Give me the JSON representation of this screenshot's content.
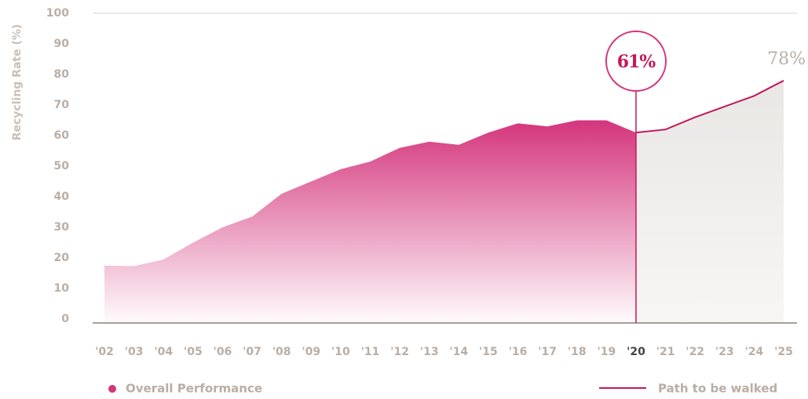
{
  "chart_data": {
    "type": "area",
    "y_axis_label": "Recycling Rate (%)",
    "categories": [
      "'02",
      "'03",
      "'04",
      "'05",
      "'06",
      "'07",
      "'08",
      "'09",
      "'10",
      "'11",
      "'12",
      "'13",
      "'14",
      "'15",
      "'16",
      "'17",
      "'18",
      "'19",
      "'20",
      "'21",
      "'22",
      "'23",
      "'24",
      "'25"
    ],
    "series": [
      {
        "name": "Overall Performance",
        "color": "#d4357c",
        "values": [
          17.5,
          17.3,
          19.5,
          25,
          30,
          33.5,
          41,
          45,
          49,
          51.5,
          56,
          58,
          57,
          61,
          64,
          63,
          65,
          65,
          61,
          null,
          null,
          null,
          null,
          null
        ]
      },
      {
        "name": "Path to be walked",
        "color": "#c2185b",
        "values": [
          null,
          null,
          null,
          null,
          null,
          null,
          null,
          null,
          null,
          null,
          null,
          null,
          null,
          null,
          null,
          null,
          null,
          null,
          61,
          62,
          66,
          69.5,
          73,
          78
        ]
      }
    ],
    "ylim": [
      0,
      100
    ],
    "yticks": [
      0,
      10,
      20,
      30,
      40,
      50,
      60,
      70,
      80,
      90,
      100
    ],
    "annotations": [
      {
        "text": "61%",
        "category": "'20"
      },
      {
        "text": "78%",
        "category": "'25"
      }
    ]
  }
}
